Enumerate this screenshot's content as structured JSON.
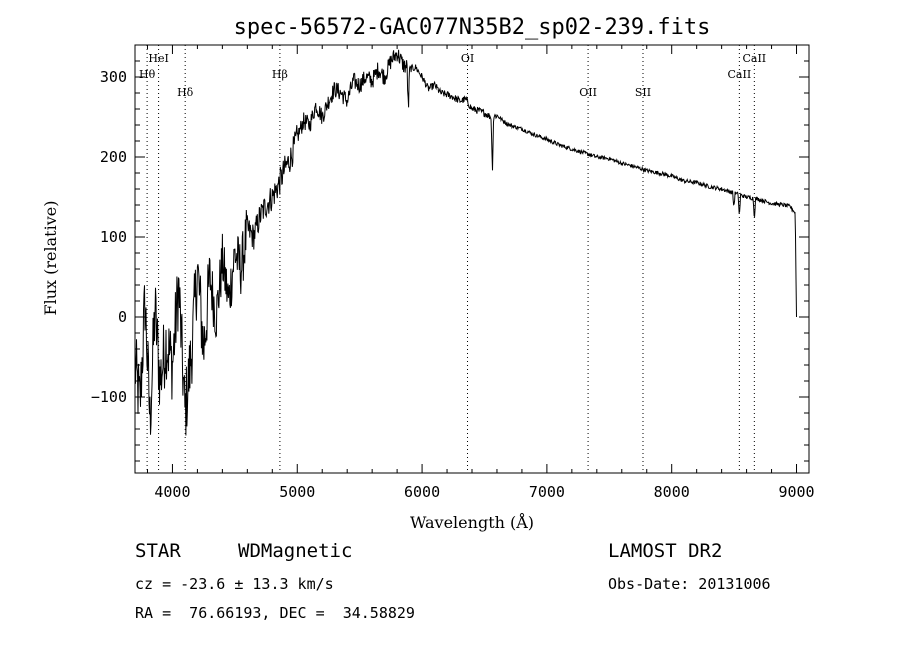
{
  "chart_data": {
    "type": "line",
    "title": "spec-56572-GAC077N35B2_sp02-239.fits",
    "xlabel": "Wavelength (Å)",
    "ylabel": "Flux (relative)",
    "xlim": [
      3700,
      9100
    ],
    "ylim": [
      -195,
      340
    ],
    "xticks": [
      4000,
      5000,
      6000,
      7000,
      8000,
      9000
    ],
    "yticks": [
      -100,
      0,
      100,
      200,
      300
    ],
    "grid": false,
    "legend": "none",
    "series": [
      {
        "x": [
          3700,
          3740,
          3780,
          3820,
          3860,
          3900,
          3950,
          4000,
          4050,
          4100,
          4150,
          4200,
          4250,
          4300,
          4350,
          4400,
          4450,
          4500,
          4550,
          4600,
          4650,
          4700,
          4750,
          4800,
          4850,
          4900,
          4950,
          5000,
          5050,
          5100,
          5150,
          5200,
          5250,
          5300,
          5350,
          5400,
          5450,
          5500,
          5550,
          5600,
          5650,
          5700,
          5750,
          5800,
          5850,
          5900,
          5950,
          6000,
          6050,
          6100,
          6150,
          6200,
          6250,
          6300,
          6350,
          6400,
          6450,
          6500,
          6550,
          6600,
          6650,
          6700,
          6800,
          6900,
          7000,
          7100,
          7200,
          7300,
          7400,
          7500,
          7600,
          7700,
          7800,
          7900,
          8000,
          8100,
          8200,
          8300,
          8400,
          8500,
          8600,
          8700,
          8800,
          8900,
          8950,
          8990,
          8995,
          9000
        ],
        "y": [
          -60,
          -110,
          20,
          -130,
          10,
          -80,
          -30,
          -60,
          40,
          -120,
          -50,
          60,
          -40,
          50,
          0,
          70,
          20,
          80,
          60,
          110,
          100,
          125,
          140,
          150,
          165,
          185,
          200,
          225,
          245,
          240,
          265,
          250,
          270,
          285,
          280,
          270,
          295,
          290,
          300,
          295,
          310,
          300,
          320,
          330,
          315,
          310,
          312,
          300,
          285,
          290,
          280,
          278,
          275,
          270,
          272,
          260,
          258,
          255,
          250,
          252,
          245,
          240,
          235,
          228,
          222,
          215,
          210,
          205,
          200,
          198,
          192,
          188,
          183,
          180,
          176,
          170,
          168,
          163,
          160,
          155,
          150,
          147,
          142,
          140,
          138,
          130,
          60,
          0
        ]
      }
    ],
    "absorption_dips": [
      {
        "x": 5890,
        "depth": 55
      },
      {
        "x": 6563,
        "depth": 70
      },
      {
        "x": 8498,
        "depth": 18
      },
      {
        "x": 8542,
        "depth": 28
      },
      {
        "x": 8662,
        "depth": 25
      }
    ],
    "line_markers": [
      {
        "label": "HeI",
        "x": 3889,
        "label_row": 1
      },
      {
        "label": "Hθ",
        "x": 3797,
        "label_row": 2
      },
      {
        "label": "Hδ",
        "x": 4102,
        "label_row": 3
      },
      {
        "label": "Hβ",
        "x": 4861,
        "label_row": 2
      },
      {
        "label": "OI",
        "x": 6364,
        "label_row": 1
      },
      {
        "label": "OII",
        "x": 7330,
        "label_row": 3
      },
      {
        "label": "SII",
        "x": 7770,
        "label_row": 3
      },
      {
        "label": "CaII",
        "x": 8542,
        "label_row": 2
      },
      {
        "label": "CaII",
        "x": 8662,
        "label_row": 1
      }
    ]
  },
  "info": {
    "class_label": "STAR",
    "subclass": "WDMagnetic",
    "survey": "LAMOST DR2",
    "redshift": "cz = -23.6 ± 13.3 km/s",
    "obs_date": "Obs-Date: 20131006",
    "coords": "RA =  76.66193, DEC =  34.58829"
  }
}
